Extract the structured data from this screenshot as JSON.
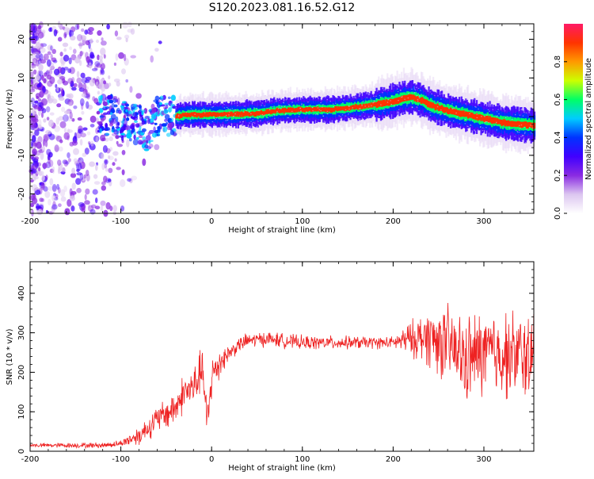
{
  "title": "S120.2023.081.16.52.G12",
  "chart_data": [
    {
      "type": "heatmap",
      "xlabel": "Height of straight line (km)",
      "ylabel": "Frequency (Hz)",
      "xlim": [
        -200,
        355
      ],
      "ylim": [
        -25,
        24
      ],
      "xticks": [
        -200,
        -100,
        0,
        100,
        200,
        300
      ],
      "yticks": [
        -20,
        -10,
        0,
        10,
        20
      ],
      "colorbar": {
        "label": "Normalized spectral amplitude",
        "range": [
          0,
          1
        ],
        "ticks": [
          "0.0",
          "0.2",
          "0.4",
          "0.6",
          "0.8"
        ],
        "colors": [
          "#ffffff",
          "#dcc6f0",
          "#8a2be2",
          "#4000ff",
          "#0033ff",
          "#00ccff",
          "#00ff66",
          "#ccff00",
          "#ff9900",
          "#ff3300",
          "#ff1a66"
        ]
      },
      "ridge": {
        "x": [
          -125,
          -110,
          -100,
          -90,
          -80,
          -70,
          -60,
          -50,
          -40,
          -30,
          0,
          50,
          70,
          100,
          130,
          150,
          170,
          190,
          200,
          210,
          220,
          230,
          240,
          260,
          280,
          300,
          320,
          340,
          355
        ],
        "y": [
          0,
          0.5,
          -1,
          -1.5,
          -2,
          -4,
          0,
          0,
          0,
          0.5,
          0.5,
          0.8,
          1.5,
          1.8,
          1.8,
          2.3,
          2.8,
          3.5,
          4.0,
          4.7,
          5.0,
          4.3,
          3.0,
          1.5,
          0.5,
          -0.5,
          -1.5,
          -2.0,
          -2.3
        ]
      }
    },
    {
      "type": "line",
      "xlabel": "Height of straight line (km)",
      "ylabel": "SNR (10 * v/v)",
      "xlim": [
        -200,
        355
      ],
      "ylim": [
        0,
        480
      ],
      "xticks": [
        -200,
        -100,
        0,
        100,
        200,
        300
      ],
      "yticks": [
        0,
        100,
        200,
        300,
        400
      ],
      "series": [
        {
          "color": "#ee2222",
          "trend": {
            "x": [
              -200,
              -120,
              -100,
              -80,
              -60,
              -40,
              -30,
              -20,
              -10,
              -5,
              0,
              10,
              20,
              30,
              40,
              60,
              100,
              150,
              200,
              220,
              240,
              260,
              280,
              300,
              355
            ],
            "y": [
              15,
              15,
              20,
              40,
              80,
              110,
              150,
              160,
              210,
              60,
              190,
              230,
              250,
              270,
              280,
              285,
              275,
              275,
              275,
              285,
              290,
              270,
              230,
              250,
              240
            ]
          },
          "noise": {
            "x": [
              -200,
              -100,
              -80,
              -40,
              0,
              20,
              200,
              230,
              250,
              280,
              355
            ],
            "amp": [
              5,
              8,
              25,
              45,
              60,
              20,
              15,
              60,
              90,
              110,
              110
            ]
          }
        }
      ]
    }
  ]
}
